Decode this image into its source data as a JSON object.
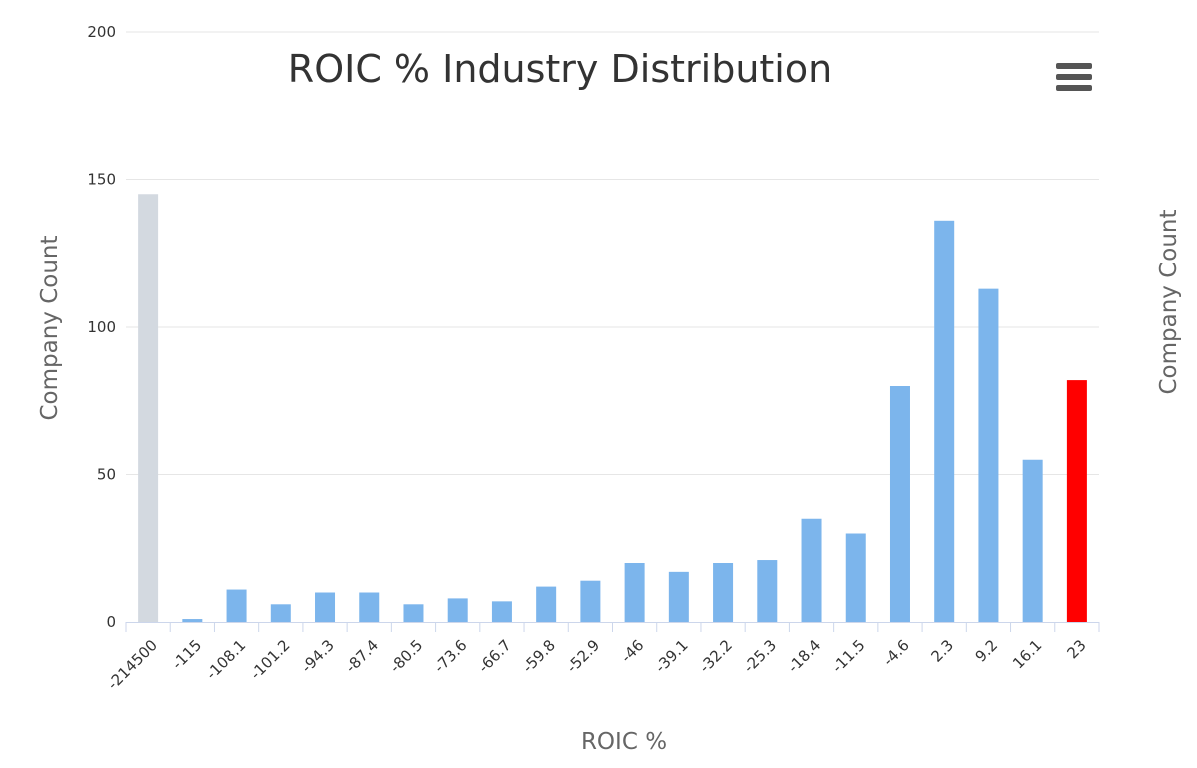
{
  "chart_data": {
    "type": "bar",
    "title": "ROIC % Industry Distribution",
    "xlabel": "ROIC %",
    "ylabel": "Company Count",
    "ylabel_right": "Company Count",
    "ylim": [
      0,
      200
    ],
    "yticks": [
      0,
      50,
      100,
      150,
      200
    ],
    "grid": true,
    "categories": [
      "-214500",
      "-115",
      "-108.1",
      "-101.2",
      "-94.3",
      "-87.4",
      "-80.5",
      "-73.6",
      "-66.7",
      "-59.8",
      "-52.9",
      "-46",
      "-39.1",
      "-32.2",
      "-25.3",
      "-18.4",
      "-11.5",
      "-4.6",
      "2.3",
      "9.2",
      "16.1",
      "23"
    ],
    "values": [
      145,
      1,
      11,
      6,
      10,
      10,
      6,
      8,
      7,
      12,
      14,
      20,
      17,
      20,
      21,
      35,
      30,
      80,
      136,
      113,
      55,
      82
    ],
    "bar_colors": {
      "outlier": "#d3d9e0",
      "normal": "#7cb5ec",
      "highlight": "#ff0000"
    },
    "outlier_index": 0,
    "highlight_index": 21
  }
}
